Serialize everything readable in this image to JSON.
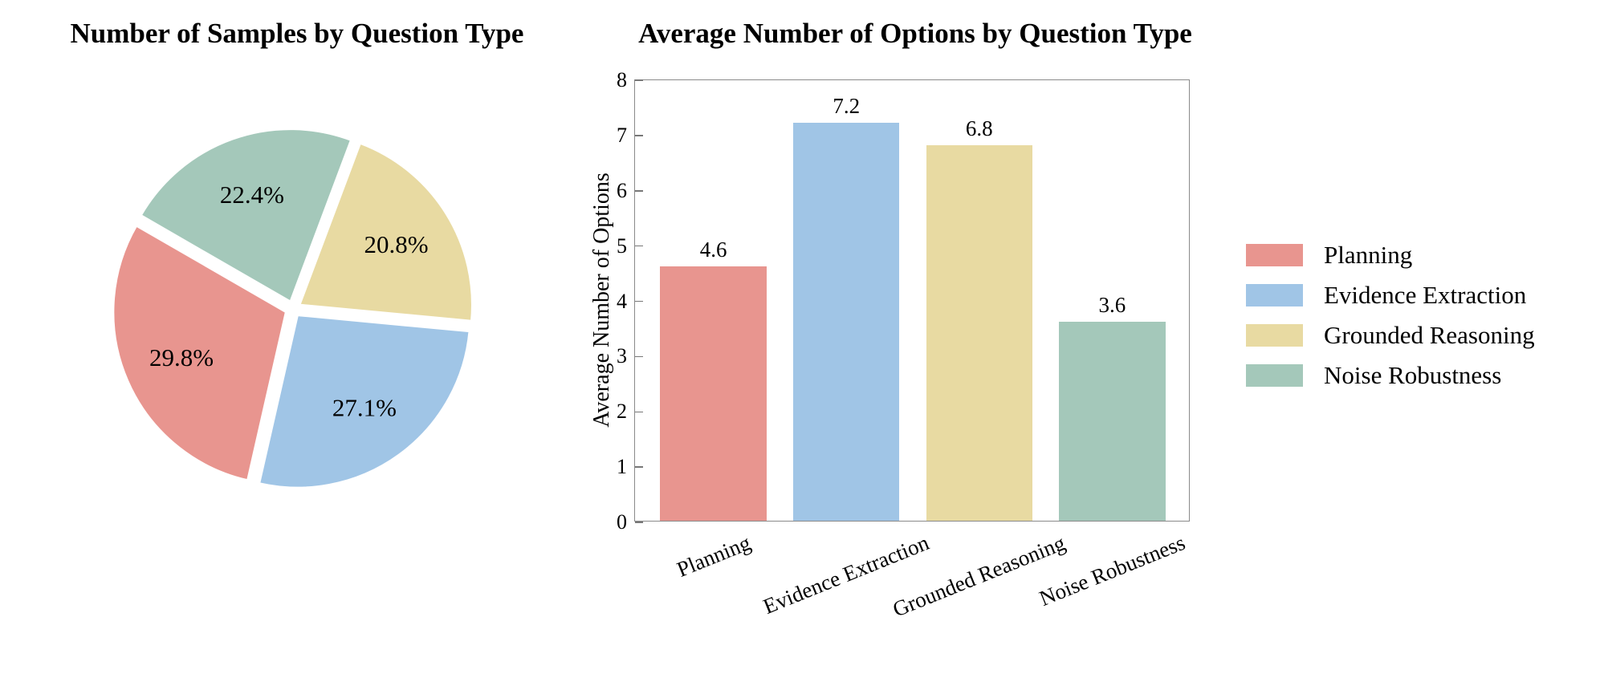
{
  "figure": {
    "background": "#ffffff"
  },
  "palette": {
    "planning": "#E8958F",
    "evidence_extraction": "#A0C5E6",
    "grounded_reasoning": "#E8DAA2",
    "noise_robustness": "#A4C8BA",
    "spine": "#8a8a8a",
    "tick": "#777777",
    "text": "#000000"
  },
  "chart_data": [
    {
      "type": "pie",
      "title": "Number of Samples by Question Type",
      "labels": [
        "Planning",
        "Evidence Extraction",
        "Grounded Reasoning",
        "Noise Robustness"
      ],
      "values": [
        29.8,
        27.1,
        20.8,
        22.4
      ],
      "pct_labels": [
        "29.8%",
        "27.1%",
        "20.8%",
        "22.4%"
      ],
      "colors": [
        "#E8958F",
        "#A0C5E6",
        "#E8DAA2",
        "#A4C8BA"
      ],
      "start_angle_deg": 150,
      "counterclockwise": true,
      "explode": 0.045,
      "label_distance": 0.66
    },
    {
      "type": "bar",
      "title": "Average Number of Options by Question Type",
      "ylabel": "Average Number of Options",
      "xlabel": "",
      "categories": [
        "Planning",
        "Evidence Extraction",
        "Grounded Reasoning",
        "Noise Robustness"
      ],
      "values": [
        4.6,
        7.2,
        6.8,
        3.6
      ],
      "value_labels": [
        "4.6",
        "7.2",
        "6.8",
        "3.6"
      ],
      "colors": [
        "#E8958F",
        "#A0C5E6",
        "#E8DAA2",
        "#A4C8BA"
      ],
      "ylim": [
        0,
        8
      ],
      "yticks": [
        0,
        1,
        2,
        3,
        4,
        5,
        6,
        7,
        8
      ],
      "grid": false,
      "tick_direction": "in",
      "xtick_rotation_deg": 22
    }
  ],
  "legend": {
    "position": "right",
    "frame": false,
    "entries": [
      {
        "label": "Planning",
        "color": "#E8958F"
      },
      {
        "label": "Evidence Extraction",
        "color": "#A0C5E6"
      },
      {
        "label": "Grounded Reasoning",
        "color": "#E8DAA2"
      },
      {
        "label": "Noise Robustness",
        "color": "#A4C8BA"
      }
    ]
  }
}
